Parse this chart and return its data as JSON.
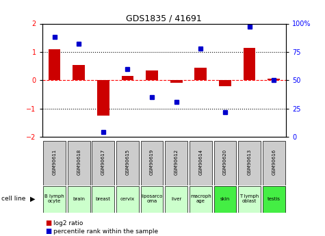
{
  "title": "GDS1835 / 41691",
  "samples": [
    "GSM90611",
    "GSM90618",
    "GSM90617",
    "GSM90615",
    "GSM90619",
    "GSM90612",
    "GSM90614",
    "GSM90620",
    "GSM90613",
    "GSM90616"
  ],
  "cell_lines": [
    "B lymph\nocyte",
    "brain",
    "breast",
    "cervix",
    "liposarco\noma",
    "liver",
    "macroph\nage",
    "skin",
    "T lymph\noblast",
    "testis"
  ],
  "cell_line_colors": [
    "#ccffcc",
    "#ccffcc",
    "#ccffcc",
    "#ccffcc",
    "#ccffcc",
    "#ccffcc",
    "#ccffcc",
    "#44ee44",
    "#ccffcc",
    "#44ee44"
  ],
  "log2_ratio": [
    1.1,
    0.55,
    -1.25,
    0.15,
    0.35,
    -0.1,
    0.45,
    -0.2,
    1.15,
    0.05
  ],
  "percentile_rank": [
    88,
    82,
    4,
    60,
    35,
    31,
    78,
    22,
    97,
    50
  ],
  "ylim_left": [
    -2,
    2
  ],
  "ylim_right": [
    0,
    100
  ],
  "bar_color": "#cc0000",
  "dot_color": "#0000cc",
  "zero_line_color": "#ff0000",
  "dotted_line_color": "#000000",
  "bg_color": "#ffffff",
  "sample_box_color": "#cccccc",
  "bar_width": 0.5,
  "right_ytick_labels": [
    "0",
    "25",
    "50",
    "75",
    "100%"
  ]
}
